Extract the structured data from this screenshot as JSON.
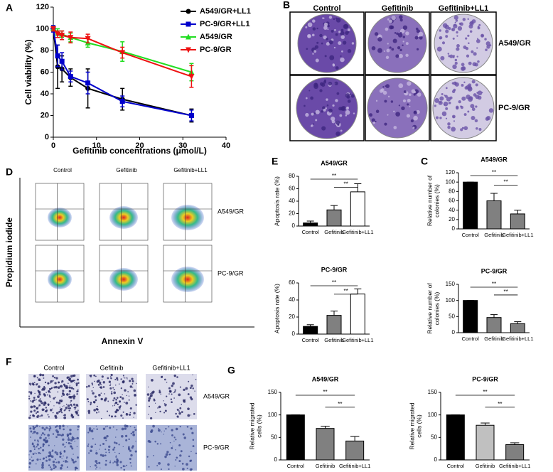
{
  "chart_data": [
    {
      "type": "line",
      "x_label": "Gefitinib concentrations (μmol/L)",
      "y_label": "Cell viability (%)",
      "x": [
        0,
        1,
        2,
        4,
        8,
        16,
        32
      ],
      "series": [
        {
          "name": "A549/GR+LL1",
          "color": "#000000",
          "marker": "circle",
          "values": [
            100,
            65,
            63,
            55,
            45,
            35,
            20
          ],
          "errors": [
            1,
            20,
            12,
            8,
            18,
            10,
            6
          ]
        },
        {
          "name": "PC-9/GR+LL1",
          "color": "#0000cc",
          "marker": "square",
          "values": [
            100,
            75,
            70,
            56,
            50,
            33,
            20
          ],
          "errors": [
            3,
            10,
            8,
            5,
            10,
            5,
            5
          ]
        },
        {
          "name": "A549/GR",
          "color": "#22dd22",
          "marker": "triangle-up",
          "values": [
            100,
            97,
            95,
            92,
            87,
            79,
            60
          ],
          "errors": [
            2,
            3,
            3,
            4,
            4,
            9,
            8
          ]
        },
        {
          "name": "PC-9/GR",
          "color": "#ee1111",
          "marker": "triangle-down",
          "values": [
            100,
            95,
            94,
            92,
            91,
            78,
            56
          ],
          "errors": [
            2,
            3,
            4,
            5,
            4,
            5,
            10
          ]
        }
      ],
      "xlim": [
        0,
        40
      ],
      "xticks": [
        0,
        10,
        20,
        30,
        40
      ],
      "ylim": [
        0,
        120
      ],
      "yticks": [
        0,
        20,
        40,
        60,
        80,
        100,
        120
      ]
    },
    {
      "type": "bar",
      "title": "A549/GR",
      "y_label": "Apoptosis rate (%)",
      "categories": [
        "Control",
        "Gefitinib",
        "Gefitinib+LL1"
      ],
      "values": [
        5,
        26,
        55
      ],
      "errors": [
        3,
        7,
        13
      ],
      "colors": [
        "#000000",
        "#808080",
        "#ffffff"
      ],
      "ylim": [
        0,
        80
      ],
      "yticks": [
        0,
        20,
        40,
        60,
        80
      ],
      "annotations": [
        "**",
        "**"
      ]
    },
    {
      "type": "bar",
      "title": "PC-9/GR",
      "y_label": "Apoptosis rate (%)",
      "categories": [
        "Control",
        "Gefitinib",
        "Gefitinib+LL1"
      ],
      "values": [
        9,
        22,
        47
      ],
      "errors": [
        2,
        5,
        6
      ],
      "colors": [
        "#000000",
        "#808080",
        "#ffffff"
      ],
      "ylim": [
        0,
        60
      ],
      "yticks": [
        0,
        20,
        40,
        60
      ],
      "annotations": [
        "**",
        "**"
      ]
    },
    {
      "type": "bar",
      "title": "A549/GR",
      "y_label": [
        "Relative number of",
        "colonies (%)"
      ],
      "categories": [
        "Control",
        "Gefitinib",
        "Gefitinib+LL1"
      ],
      "values": [
        100,
        60,
        32
      ],
      "errors": [
        0,
        16,
        8
      ],
      "colors": [
        "#000000",
        "#808080",
        "#808080"
      ],
      "ylim": [
        0,
        120
      ],
      "yticks": [
        0,
        20,
        40,
        60,
        80,
        100,
        120
      ],
      "annotations": [
        "**",
        "**"
      ]
    },
    {
      "type": "bar",
      "title": "PC-9/GR",
      "y_label": [
        "Relative number of",
        "colonies (%)"
      ],
      "categories": [
        "Control",
        "Gefitinib",
        "Gefitinib+LL1"
      ],
      "values": [
        100,
        47,
        28
      ],
      "errors": [
        0,
        9,
        6
      ],
      "colors": [
        "#000000",
        "#808080",
        "#808080"
      ],
      "ylim": [
        0,
        150
      ],
      "yticks": [
        0,
        50,
        100,
        150
      ],
      "annotations": [
        "**",
        "**"
      ]
    },
    {
      "type": "bar",
      "title": "A549/GR",
      "y_label": [
        "Relative migrated",
        "cells (%)"
      ],
      "categories": [
        "Control",
        "Gefitinib",
        "Gefitinib+LL1"
      ],
      "values": [
        100,
        70,
        42
      ],
      "errors": [
        0,
        5,
        10
      ],
      "colors": [
        "#000000",
        "#808080",
        "#808080"
      ],
      "ylim": [
        0,
        150
      ],
      "yticks": [
        0,
        50,
        100,
        150
      ],
      "annotations": [
        "**",
        "**"
      ]
    },
    {
      "type": "bar",
      "title": "PC-9/GR",
      "y_label": [
        "Relative migrated",
        "cells (%)"
      ],
      "categories": [
        "Control",
        "Gefitinib",
        "Gefitinib+LL1"
      ],
      "values": [
        100,
        77,
        34
      ],
      "errors": [
        0,
        5,
        4
      ],
      "colors": [
        "#000000",
        "#c0c0c0",
        "#808080"
      ],
      "ylim": [
        0,
        150
      ],
      "yticks": [
        0,
        50,
        100,
        150
      ],
      "annotations": [
        "**",
        "**"
      ]
    }
  ],
  "panel_labels": [
    "A",
    "B",
    "D",
    "E",
    "C",
    "F",
    "G"
  ],
  "image_panels": {
    "B": {
      "columns": [
        "Control",
        "Gefitinib",
        "Gefitinib+LL1"
      ],
      "rows": [
        "A549/GR",
        "PC-9/GR"
      ]
    },
    "D": {
      "columns": [
        "Control",
        "Gefitinib",
        "Gefitinib+LL1"
      ],
      "rows": [
        "A549/GR",
        "PC-9/GR"
      ],
      "y_label": "Propidium iodide",
      "x_label": "Annexin V"
    },
    "F": {
      "columns": [
        "Control",
        "Gefitinib",
        "Gefitinib+LL1"
      ],
      "rows": [
        "A549/GR",
        "PC-9/GR"
      ]
    }
  }
}
